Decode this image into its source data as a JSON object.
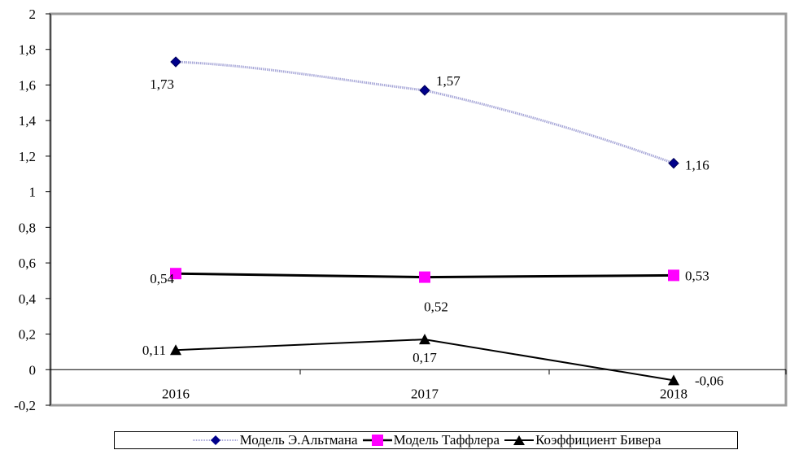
{
  "chart_data": {
    "type": "line",
    "categories": [
      "2016",
      "2017",
      "2018"
    ],
    "ylim": [
      -0.2,
      2
    ],
    "yticks": [
      "2",
      "1,8",
      "1,6",
      "1,4",
      "1,2",
      "1",
      "0,8",
      "0,6",
      "0,4",
      "0,2",
      "0",
      "-0,2"
    ],
    "grid": false,
    "legend_position": "bottom",
    "series": [
      {
        "name": "Модель Э.Альтмана",
        "values": [
          1.73,
          1.57,
          1.16
        ],
        "labels": [
          "1,73",
          "1,57",
          "1,16"
        ],
        "color": "#00008b",
        "marker": "diamond",
        "line_style": "dotted"
      },
      {
        "name": "Модель Таффлера",
        "values": [
          0.54,
          0.52,
          0.53
        ],
        "labels": [
          "0,54",
          "0,52",
          "0,53"
        ],
        "color": "#ff00ff",
        "marker": "square",
        "line_style": "solid"
      },
      {
        "name": "Коэффициент Бивера",
        "values": [
          0.11,
          0.17,
          -0.06
        ],
        "labels": [
          "0,11",
          "0,17",
          "-0,06"
        ],
        "color": "#000000",
        "marker": "triangle",
        "line_style": "solid"
      }
    ]
  }
}
